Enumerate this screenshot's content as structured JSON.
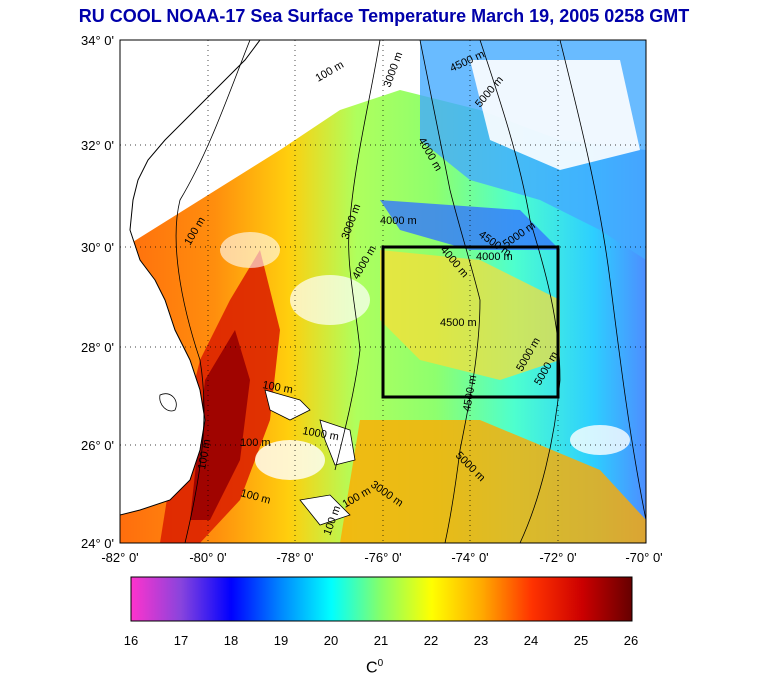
{
  "title": "RU COOL  NOAA-17 Sea Surface Temperature March 19, 2005 0258 GMT",
  "colors": {
    "title": "#0000aa",
    "land": "#ffffff",
    "box": "#000000"
  },
  "axes": {
    "lat_labels": [
      "34° 0'",
      "32° 0'",
      "30° 0'",
      "28° 0'",
      "26° 0'",
      "24° 0'"
    ],
    "lon_labels": [
      "-82° 0'",
      "-80° 0'",
      "-78° 0'",
      "-76° 0'",
      "-74° 0'",
      "-72° 0'",
      "-70° 0'"
    ],
    "lat_range": [
      24,
      34
    ],
    "lon_range": [
      -82,
      -70
    ],
    "grid": "dotted"
  },
  "study_box": {
    "lon": [
      -76,
      -72
    ],
    "lat": [
      27,
      30
    ]
  },
  "contour_labels": [
    "100 m",
    "3000 m",
    "4500 m",
    "5000 m",
    "4000 m",
    "100 m",
    "3000 m",
    "4000 m",
    "4500 m",
    "5000 m",
    "4000 m",
    "4000 m",
    "4000 m",
    "4500 m",
    "5000 m",
    "5000 m",
    "100 m",
    "4500 m",
    "100 m",
    "1000 m",
    "100 m",
    "5000 m",
    "100 m",
    "100 m",
    "3000 m",
    "100 m"
  ],
  "colorbar": {
    "ticks": [
      "16",
      "17",
      "18",
      "19",
      "20",
      "21",
      "22",
      "23",
      "24",
      "25",
      "26"
    ],
    "range": [
      16,
      26
    ],
    "stops": [
      "#ff33cc",
      "#8844dd",
      "#0000ff",
      "#0088ff",
      "#00ffff",
      "#88ff66",
      "#ffff00",
      "#ffaa00",
      "#ff3300",
      "#cc0000",
      "#660000"
    ],
    "unit": "C",
    "unit_sup": "0"
  }
}
